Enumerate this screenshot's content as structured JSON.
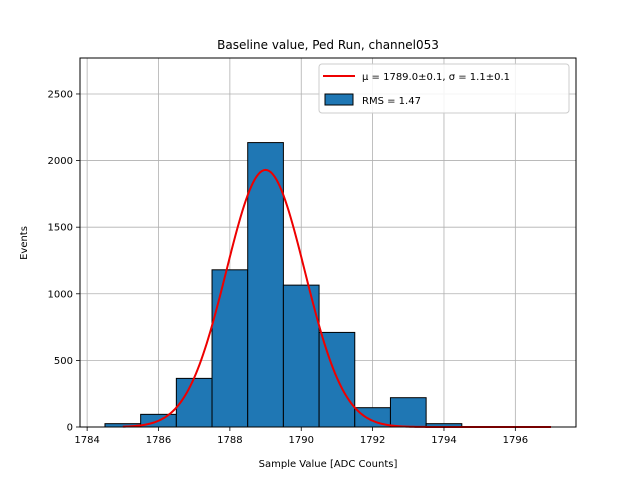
{
  "chart_data": {
    "type": "bar",
    "title": "Baseline value, Ped Run, channel053",
    "xlabel": "Sample Value [ADC Counts]",
    "ylabel": "Events",
    "xlim": [
      1783.8,
      1797.7
    ],
    "ylim": [
      0,
      2770
    ],
    "grid": true,
    "legend_position": "top-right",
    "xticks": [
      1784,
      1786,
      1788,
      1790,
      1792,
      1794,
      1796
    ],
    "yticks": [
      0,
      500,
      1000,
      1500,
      2000,
      2500
    ],
    "bin_width": 1,
    "series": [
      {
        "name": "RMS = 1.47",
        "type": "bar",
        "color": "#1f77b4",
        "edge_color": "#000000",
        "x": [
          1785,
          1786,
          1787,
          1788,
          1789,
          1790,
          1791,
          1792,
          1793,
          1794
        ],
        "values": [
          25,
          95,
          365,
          1180,
          2135,
          1065,
          710,
          145,
          220,
          25
        ]
      },
      {
        "name": "μ = 1789.0±0.1, σ = 1.1±0.1",
        "type": "line",
        "color": "#ee0000",
        "amplitude": 1930,
        "mu": 1789.0,
        "sigma": 1.1,
        "x_range": [
          1785.0,
          1797.0
        ]
      }
    ]
  }
}
